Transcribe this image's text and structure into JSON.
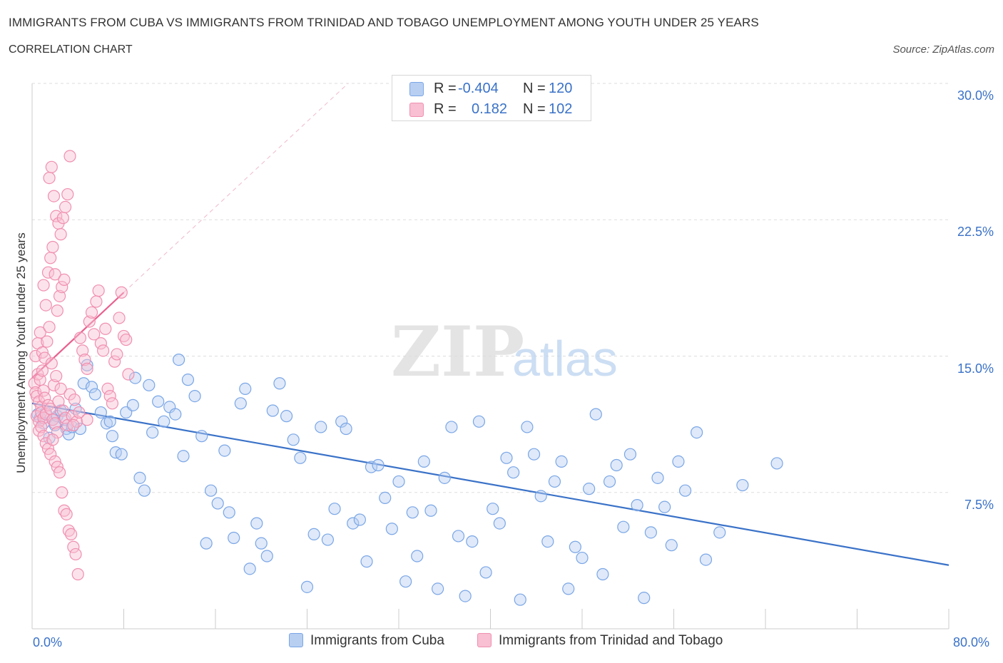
{
  "title": "IMMIGRANTS FROM CUBA VS IMMIGRANTS FROM TRINIDAD AND TOBAGO UNEMPLOYMENT AMONG YOUTH UNDER 25 YEARS",
  "subtitle": "CORRELATION CHART",
  "source": "Source: ZipAtlas.com",
  "watermark": {
    "zip": "ZIP",
    "atlas": "atlas"
  },
  "stats": {
    "row1": {
      "r_label": "R =",
      "r_value": "-0.404",
      "n_label": "N =",
      "n_value": "120"
    },
    "row2": {
      "r_label": "R =",
      "r_value": "0.182",
      "n_label": "N =",
      "n_value": "102"
    }
  },
  "legend": {
    "cuba": "Immigrants from Cuba",
    "trinidad": "Immigrants from Trinidad and Tobago"
  },
  "colors": {
    "cuba_fill": "#b8cff2",
    "cuba_stroke": "#7aa6e6",
    "cuba_line": "#3a72c8",
    "trin_fill": "#f8c0d2",
    "trin_stroke": "#f08fb0",
    "trin_line": "#e8608f",
    "tick_color": "#3a72c8"
  },
  "chart_data": {
    "type": "scatter",
    "xlabel": "",
    "ylabel": "Unemployment Among Youth under 25 years",
    "xlim": [
      0,
      80
    ],
    "ylim": [
      0,
      30
    ],
    "x_ticks": [
      "0.0%",
      "80.0%"
    ],
    "y_ticks": [
      {
        "value": 7.5,
        "label": "7.5%"
      },
      {
        "value": 15,
        "label": "15.0%"
      },
      {
        "value": 22.5,
        "label": "22.5%"
      },
      {
        "value": 30,
        "label": "30.0%"
      }
    ],
    "grid": true,
    "legend_position": "bottom-center",
    "series": [
      {
        "name": "Immigrants from Cuba",
        "trend": {
          "x": [
            0,
            80
          ],
          "y": [
            12.4,
            3.5
          ]
        },
        "points": [
          [
            0.5,
            11.8
          ],
          [
            0.7,
            11.6
          ],
          [
            1.0,
            11.3
          ],
          [
            1.2,
            11.9
          ],
          [
            1.5,
            10.5
          ],
          [
            1.8,
            11.5
          ],
          [
            2.0,
            11.2
          ],
          [
            2.2,
            11.7
          ],
          [
            2.5,
            12.0
          ],
          [
            2.8,
            11.5
          ],
          [
            3.0,
            11.0
          ],
          [
            3.2,
            10.7
          ],
          [
            3.5,
            11.1
          ],
          [
            3.8,
            12.1
          ],
          [
            4.2,
            11.0
          ],
          [
            4.5,
            13.5
          ],
          [
            4.8,
            14.5
          ],
          [
            5.2,
            13.3
          ],
          [
            5.5,
            12.9
          ],
          [
            6.0,
            11.9
          ],
          [
            6.5,
            11.3
          ],
          [
            6.8,
            11.4
          ],
          [
            7.0,
            10.6
          ],
          [
            7.3,
            9.7
          ],
          [
            7.8,
            9.6
          ],
          [
            8.2,
            11.9
          ],
          [
            8.8,
            12.3
          ],
          [
            9.0,
            13.8
          ],
          [
            9.4,
            8.3
          ],
          [
            9.8,
            7.6
          ],
          [
            10.2,
            13.4
          ],
          [
            10.5,
            10.8
          ],
          [
            11.0,
            12.5
          ],
          [
            11.5,
            11.4
          ],
          [
            12.0,
            12.2
          ],
          [
            12.5,
            11.8
          ],
          [
            12.8,
            14.8
          ],
          [
            13.2,
            9.5
          ],
          [
            13.6,
            13.7
          ],
          [
            14.2,
            12.8
          ],
          [
            14.8,
            10.6
          ],
          [
            15.2,
            4.7
          ],
          [
            15.6,
            7.6
          ],
          [
            16.2,
            6.9
          ],
          [
            16.8,
            9.8
          ],
          [
            17.2,
            6.4
          ],
          [
            17.6,
            5.0
          ],
          [
            18.2,
            12.4
          ],
          [
            18.6,
            13.2
          ],
          [
            19.0,
            3.3
          ],
          [
            19.6,
            5.8
          ],
          [
            20.0,
            4.7
          ],
          [
            20.5,
            4.0
          ],
          [
            21.0,
            12.0
          ],
          [
            21.6,
            13.5
          ],
          [
            22.2,
            11.7
          ],
          [
            22.8,
            10.4
          ],
          [
            23.4,
            9.4
          ],
          [
            24.0,
            2.3
          ],
          [
            24.6,
            5.2
          ],
          [
            25.2,
            11.1
          ],
          [
            25.8,
            4.9
          ],
          [
            26.4,
            6.6
          ],
          [
            27.0,
            11.4
          ],
          [
            27.4,
            11.0
          ],
          [
            28.0,
            5.8
          ],
          [
            28.6,
            6.0
          ],
          [
            29.2,
            3.7
          ],
          [
            29.6,
            8.9
          ],
          [
            30.2,
            9.0
          ],
          [
            30.8,
            7.2
          ],
          [
            31.4,
            5.5
          ],
          [
            32.0,
            8.1
          ],
          [
            32.6,
            2.6
          ],
          [
            33.2,
            6.4
          ],
          [
            33.6,
            4.0
          ],
          [
            34.2,
            9.2
          ],
          [
            34.8,
            6.5
          ],
          [
            35.4,
            2.2
          ],
          [
            36.0,
            8.3
          ],
          [
            36.6,
            11.1
          ],
          [
            37.2,
            5.1
          ],
          [
            37.8,
            1.8
          ],
          [
            38.4,
            4.8
          ],
          [
            39.0,
            11.4
          ],
          [
            39.6,
            3.1
          ],
          [
            40.2,
            6.6
          ],
          [
            40.8,
            5.8
          ],
          [
            41.4,
            9.4
          ],
          [
            42.0,
            8.6
          ],
          [
            42.6,
            1.6
          ],
          [
            43.2,
            11.1
          ],
          [
            43.8,
            9.6
          ],
          [
            44.4,
            7.3
          ],
          [
            45.0,
            4.8
          ],
          [
            45.6,
            8.1
          ],
          [
            46.2,
            9.2
          ],
          [
            46.8,
            2.2
          ],
          [
            47.4,
            4.5
          ],
          [
            48.0,
            3.9
          ],
          [
            48.6,
            7.7
          ],
          [
            49.2,
            11.8
          ],
          [
            49.8,
            3.0
          ],
          [
            50.4,
            8.1
          ],
          [
            51.0,
            9.0
          ],
          [
            51.6,
            5.6
          ],
          [
            52.2,
            9.6
          ],
          [
            52.8,
            6.8
          ],
          [
            53.4,
            1.7
          ],
          [
            54.0,
            5.3
          ],
          [
            54.6,
            8.3
          ],
          [
            55.2,
            6.7
          ],
          [
            55.8,
            4.6
          ],
          [
            56.4,
            9.2
          ],
          [
            57.0,
            7.6
          ],
          [
            58.0,
            10.8
          ],
          [
            58.8,
            3.8
          ],
          [
            60.0,
            5.3
          ],
          [
            62.0,
            7.9
          ],
          [
            65.0,
            9.1
          ]
        ]
      },
      {
        "name": "Immigrants from Trinidad and Tobago",
        "trend": {
          "x": [
            0,
            8
          ],
          "y": [
            13.8,
            18.5
          ]
        },
        "points": [
          [
            0.2,
            13.5
          ],
          [
            0.3,
            13.0
          ],
          [
            0.4,
            12.8
          ],
          [
            0.5,
            14.0
          ],
          [
            0.6,
            12.5
          ],
          [
            0.7,
            13.7
          ],
          [
            0.8,
            12.2
          ],
          [
            0.9,
            14.2
          ],
          [
            1.0,
            13.1
          ],
          [
            1.1,
            12.7
          ],
          [
            0.3,
            15.0
          ],
          [
            0.5,
            15.7
          ],
          [
            0.7,
            16.3
          ],
          [
            0.9,
            15.2
          ],
          [
            1.1,
            14.9
          ],
          [
            1.3,
            15.8
          ],
          [
            1.5,
            16.6
          ],
          [
            1.7,
            14.6
          ],
          [
            1.9,
            13.4
          ],
          [
            2.1,
            13.9
          ],
          [
            2.3,
            12.5
          ],
          [
            2.5,
            13.2
          ],
          [
            2.7,
            12.0
          ],
          [
            2.9,
            11.6
          ],
          [
            3.1,
            11.2
          ],
          [
            3.3,
            12.9
          ],
          [
            3.5,
            11.7
          ],
          [
            3.7,
            12.6
          ],
          [
            3.9,
            11.4
          ],
          [
            4.1,
            11.9
          ],
          [
            0.4,
            11.7
          ],
          [
            0.6,
            11.4
          ],
          [
            0.8,
            11.9
          ],
          [
            1.0,
            11.6
          ],
          [
            1.2,
            11.8
          ],
          [
            1.4,
            12.3
          ],
          [
            1.6,
            12.1
          ],
          [
            1.8,
            11.5
          ],
          [
            2.0,
            11.3
          ],
          [
            2.2,
            10.8
          ],
          [
            1.0,
            18.9
          ],
          [
            1.2,
            17.8
          ],
          [
            1.4,
            19.6
          ],
          [
            1.6,
            20.4
          ],
          [
            1.8,
            21.0
          ],
          [
            2.0,
            19.5
          ],
          [
            2.2,
            17.5
          ],
          [
            2.4,
            18.3
          ],
          [
            2.6,
            18.8
          ],
          [
            2.8,
            19.2
          ],
          [
            1.5,
            24.8
          ],
          [
            1.7,
            25.4
          ],
          [
            1.9,
            23.8
          ],
          [
            2.1,
            22.7
          ],
          [
            2.3,
            22.3
          ],
          [
            2.5,
            21.7
          ],
          [
            2.7,
            22.6
          ],
          [
            2.9,
            23.2
          ],
          [
            3.1,
            23.9
          ],
          [
            3.3,
            26.0
          ],
          [
            0.6,
            10.9
          ],
          [
            0.8,
            11.1
          ],
          [
            1.0,
            10.6
          ],
          [
            1.2,
            10.2
          ],
          [
            1.4,
            9.9
          ],
          [
            1.6,
            9.6
          ],
          [
            1.8,
            10.4
          ],
          [
            2.0,
            9.2
          ],
          [
            2.2,
            8.9
          ],
          [
            2.4,
            8.6
          ],
          [
            2.6,
            7.5
          ],
          [
            2.8,
            6.5
          ],
          [
            3.0,
            6.3
          ],
          [
            3.2,
            5.4
          ],
          [
            3.4,
            5.2
          ],
          [
            3.6,
            4.5
          ],
          [
            3.8,
            4.1
          ],
          [
            4.0,
            3.0
          ],
          [
            4.2,
            16.0
          ],
          [
            4.4,
            15.3
          ],
          [
            4.6,
            14.8
          ],
          [
            4.8,
            14.3
          ],
          [
            5.0,
            16.9
          ],
          [
            5.2,
            17.4
          ],
          [
            5.4,
            16.2
          ],
          [
            5.6,
            18.0
          ],
          [
            5.8,
            18.6
          ],
          [
            6.0,
            15.7
          ],
          [
            6.2,
            15.3
          ],
          [
            6.4,
            16.5
          ],
          [
            6.6,
            13.2
          ],
          [
            6.8,
            12.8
          ],
          [
            7.0,
            12.4
          ],
          [
            7.2,
            14.7
          ],
          [
            7.4,
            15.1
          ],
          [
            7.6,
            17.1
          ],
          [
            7.8,
            18.5
          ],
          [
            8.0,
            16.1
          ],
          [
            8.2,
            15.9
          ],
          [
            8.4,
            14.0
          ],
          [
            3.6,
            11.2
          ],
          [
            4.8,
            11.5
          ]
        ]
      }
    ]
  }
}
